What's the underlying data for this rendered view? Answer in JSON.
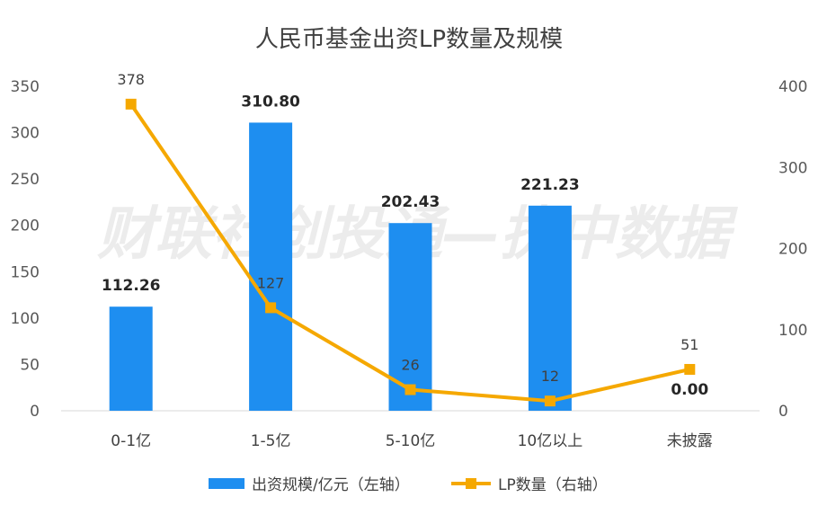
{
  "chart_data": {
    "type": "bar+line",
    "title": "人民币基金出资LP数量及规模",
    "watermark": "财联社创投通—执中数据",
    "categories": [
      "0-1亿",
      "1-5亿",
      "5-10亿",
      "10亿以上",
      "未披露"
    ],
    "series": [
      {
        "name": "出资规模/亿元（左轴）",
        "type": "bar",
        "axis": "left",
        "color": "#1E8EF0",
        "values": [
          112.26,
          310.8,
          202.43,
          221.23,
          0.0
        ],
        "labels": [
          "112.26",
          "310.80",
          "202.43",
          "221.23",
          "0.00"
        ]
      },
      {
        "name": "LP数量（右轴）",
        "type": "line",
        "axis": "right",
        "color": "#F5A800",
        "values": [
          378,
          127,
          26,
          12,
          51
        ],
        "labels": [
          "378",
          "127",
          "26",
          "12",
          "51"
        ]
      }
    ],
    "left_axis": {
      "min": 0,
      "max": 350,
      "ticks": [
        "0",
        "50",
        "100",
        "150",
        "200",
        "250",
        "300",
        "350"
      ]
    },
    "right_axis": {
      "min": 0,
      "max": 400,
      "ticks": [
        "0",
        "100",
        "200",
        "300",
        "400"
      ]
    },
    "grid": false,
    "legend_position": "bottom"
  }
}
